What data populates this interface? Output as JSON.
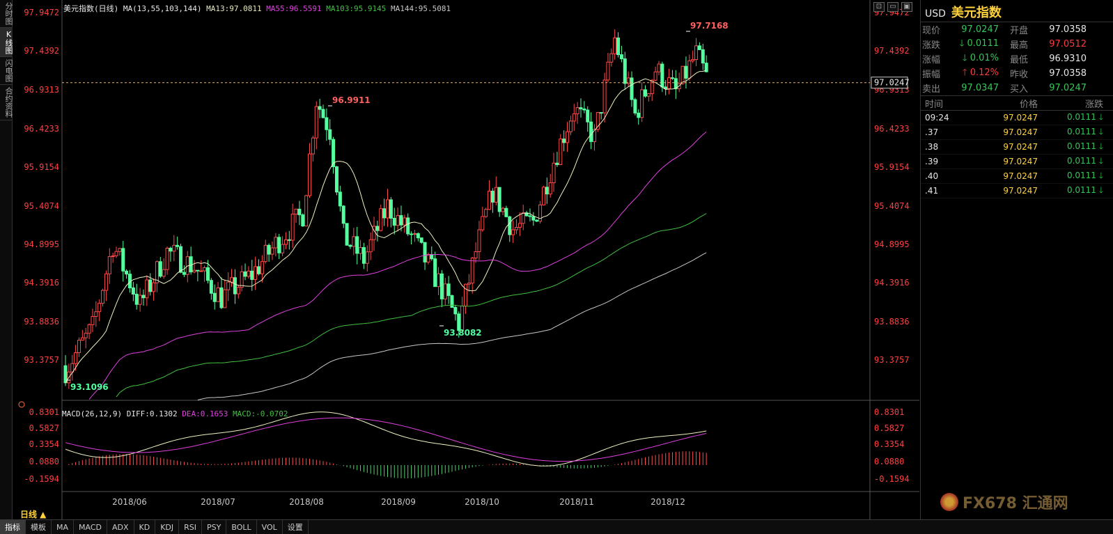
{
  "rail": {
    "tabs": [
      "分时图",
      "K线图",
      "闪电图",
      "合约资料"
    ],
    "active": 1
  },
  "main": {
    "legend": [
      {
        "text": "美元指数(日线)",
        "color": "#e8e8e8"
      },
      {
        "text": "MA(13,55,103,144)",
        "color": "#e8e8e8"
      },
      {
        "text": "MA13:97.0811",
        "color": "#e8e8c0"
      },
      {
        "text": "MA55:96.5591",
        "color": "#e040e0"
      },
      {
        "text": "MA103:95.9145",
        "color": "#40c040"
      },
      {
        "text": "MA144:95.5081",
        "color": "#c8c8c8"
      }
    ],
    "y_ticks": [
      "97.9472",
      "97.4392",
      "96.9313",
      "96.4233",
      "95.9154",
      "95.4074",
      "94.8995",
      "94.3916",
      "93.8836",
      "93.3757"
    ],
    "current_price_tag": "97.0247",
    "annotations": [
      {
        "text": "97.7168",
        "kind": "high"
      },
      {
        "text": "96.9911",
        "kind": "high"
      },
      {
        "text": "93.8082",
        "kind": "low"
      },
      {
        "text": "93.1096",
        "kind": "low"
      }
    ]
  },
  "macd": {
    "legend": [
      {
        "text": "MACD(26,12,9)",
        "color": "#e8e8e8"
      },
      {
        "text": "DIFF:0.1302",
        "color": "#e8e8e8"
      },
      {
        "text": "DEA:0.1653",
        "color": "#e040e0"
      },
      {
        "text": "MACD:-0.0702",
        "color": "#40c040"
      }
    ],
    "y_ticks": [
      "0.8301",
      "0.5827",
      "0.3354",
      "0.0880",
      "-0.1594"
    ]
  },
  "x_axis": [
    "2018/06",
    "2018/07",
    "2018/08",
    "2018/09",
    "2018/10",
    "2018/11",
    "2018/12"
  ],
  "period_button": "日线 ▲",
  "bottom_bar": [
    "指标",
    "模板",
    "MA",
    "MACD",
    "ADX",
    "KD",
    "KDJ",
    "RSI",
    "PSY",
    "BOLL",
    "VOL",
    "设置"
  ],
  "window_buttons": [
    "⊡",
    "▭",
    "▣"
  ],
  "quote": {
    "code": "USD",
    "name": "美元指数",
    "rows": [
      {
        "l1": "现价",
        "v1": "97.0247",
        "c1": "down",
        "l2": "开盘",
        "v2": "97.0358",
        "c2": "white"
      },
      {
        "l1": "涨跌",
        "v1": "🡓 0.0111",
        "c1": "down",
        "l2": "最高",
        "v2": "97.0512",
        "c2": "up"
      },
      {
        "l1": "涨幅",
        "v1": "🡓 0.01%",
        "c1": "down",
        "l2": "最低",
        "v2": "96.9310",
        "c2": "white"
      },
      {
        "l1": "振幅",
        "v1": "🡑 0.12%",
        "c1": "up",
        "l2": "昨收",
        "v2": "97.0358",
        "c2": "white"
      },
      {
        "l1": "卖出",
        "v1": "97.0347",
        "c1": "down",
        "l2": "买入",
        "v2": "97.0247",
        "c2": "down"
      }
    ],
    "ticks_head": [
      "时间",
      "价格",
      "涨跌"
    ],
    "ticks": [
      {
        "time": "09:24",
        "price": "97.0247",
        "chg": "0.0111 🡓"
      },
      {
        "time": ".37",
        "price": "97.0247",
        "chg": "0.0111 🡓"
      },
      {
        "time": ".38",
        "price": "97.0247",
        "chg": "0.0111 🡓"
      },
      {
        "time": ".39",
        "price": "97.0247",
        "chg": "0.0111 🡓"
      },
      {
        "time": ".40",
        "price": "97.0247",
        "chg": "0.0111 🡓"
      },
      {
        "time": ".41",
        "price": "97.0247",
        "chg": "0.0111 🡓"
      }
    ]
  },
  "watermark": "FX678 汇通网"
}
